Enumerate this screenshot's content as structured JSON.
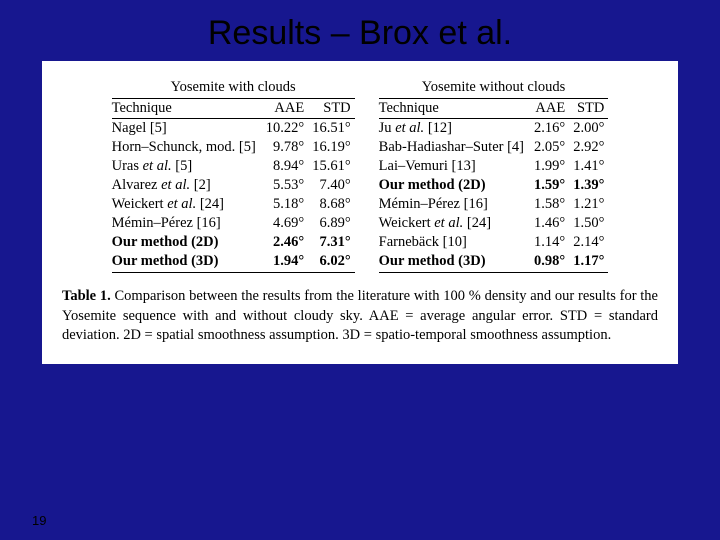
{
  "slide": {
    "title": "Results – Brox et al.",
    "page_number": "19",
    "background_color": "#17178f",
    "panel_color": "#ffffff"
  },
  "left": {
    "group": "Yosemite with clouds",
    "cols": {
      "c1": "Technique",
      "c2": "AAE",
      "c3": "STD"
    },
    "r0": {
      "t": "Nagel [5]",
      "a": "10.22°",
      "s": "16.51°",
      "bold": false
    },
    "r1": {
      "t": "Horn–Schunck, mod. [5]",
      "a": "9.78°",
      "s": "16.19°",
      "bold": false
    },
    "r2": {
      "t": "Uras et al. [5]",
      "a": "8.94°",
      "s": "15.61°",
      "bold": false,
      "ital": true
    },
    "r3": {
      "t": "Alvarez et al. [2]",
      "a": "5.53°",
      "s": "7.40°",
      "bold": false,
      "ital": true
    },
    "r4": {
      "t": "Weickert et al. [24]",
      "a": "5.18°",
      "s": "8.68°",
      "bold": false,
      "ital": true
    },
    "r5": {
      "t": "Mémin–Pérez [16]",
      "a": "4.69°",
      "s": "6.89°",
      "bold": false
    },
    "r6": {
      "t": "Our method (2D)",
      "a": "2.46°",
      "s": "7.31°",
      "bold": true
    },
    "r7": {
      "t": "Our method (3D)",
      "a": "1.94°",
      "s": "6.02°",
      "bold": true
    }
  },
  "right": {
    "group": "Yosemite without clouds",
    "cols": {
      "c1": "Technique",
      "c2": "AAE",
      "c3": "STD"
    },
    "r0": {
      "t": "Ju et al. [12]",
      "a": "2.16°",
      "s": "2.00°",
      "bold": false,
      "ital": true
    },
    "r1": {
      "t": "Bab-Hadiashar–Suter [4]",
      "a": "2.05°",
      "s": "2.92°",
      "bold": false
    },
    "r2": {
      "t": "Lai–Vemuri [13]",
      "a": "1.99°",
      "s": "1.41°",
      "bold": false
    },
    "r3": {
      "t": "Our method (2D)",
      "a": "1.59°",
      "s": "1.39°",
      "bold": true
    },
    "r4": {
      "t": "Mémin–Pérez [16]",
      "a": "1.58°",
      "s": "1.21°",
      "bold": false
    },
    "r5": {
      "t": "Weickert et al. [24]",
      "a": "1.46°",
      "s": "1.50°",
      "bold": false,
      "ital": true
    },
    "r6": {
      "t": "Farnebäck [10]",
      "a": "1.14°",
      "s": "2.14°",
      "bold": false
    },
    "r7": {
      "t": "Our method (3D)",
      "a": "0.98°",
      "s": "1.17°",
      "bold": true
    }
  },
  "caption": {
    "label": "Table 1.",
    "text": " Comparison between the results from the literature with 100 % density and our results for the Yosemite sequence with and without cloudy sky. AAE = average angular error. STD = standard deviation. 2D = spatial smoothness assumption. 3D = spatio-temporal smoothness assumption."
  }
}
